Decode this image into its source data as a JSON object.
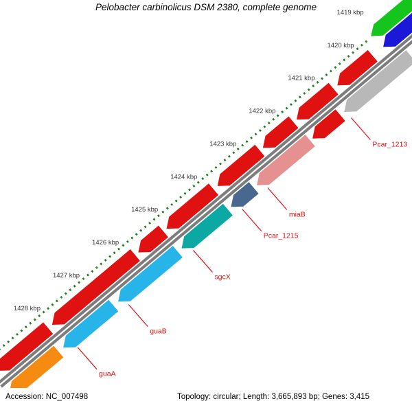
{
  "title": "Pelobacter carbinolicus DSM 2380, complete genome",
  "footer": {
    "accession": "Accession: NC_007498",
    "topology": "Topology: circular; Length: 3,665,893 bp; Genes: 3,415"
  },
  "genome_map": {
    "unit_label": "kbp",
    "ticks_kbp": [
      1419,
      1420,
      1421,
      1422,
      1423,
      1424,
      1425,
      1426,
      1427,
      1428
    ],
    "colors": {
      "red": "#e01111",
      "gray": "#b8b8b8",
      "pink": "#e59091",
      "steel": "#49688f",
      "teal": "#0ca9a4",
      "cyan": "#27b4e8",
      "orange": "#f68b11",
      "green": "#15c41c",
      "blue": "#1b18d8",
      "backbone": "#7d7d7d",
      "tick_line": "#1e7d1e",
      "tick_label": "#333333",
      "callout": "#dd1111"
    },
    "features": [
      {
        "name": "",
        "color": "green",
        "lane": "outer",
        "start_kbp": 1418.2,
        "end_kbp": 1419.5
      },
      {
        "name": "",
        "color": "blue",
        "lane": "forward",
        "start_kbp": 1418.3,
        "end_kbp": 1419.45
      },
      {
        "name": "",
        "color": "red",
        "lane": "forward",
        "start_kbp": 1419.72,
        "end_kbp": 1420.62
      },
      {
        "name": "",
        "color": "red",
        "lane": "forward",
        "start_kbp": 1420.72,
        "end_kbp": 1421.66
      },
      {
        "name": "",
        "color": "red",
        "lane": "forward",
        "start_kbp": 1421.74,
        "end_kbp": 1422.52
      },
      {
        "name": "",
        "color": "red",
        "lane": "forward",
        "start_kbp": 1422.6,
        "end_kbp": 1423.68
      },
      {
        "name": "",
        "color": "red",
        "lane": "forward",
        "start_kbp": 1423.78,
        "end_kbp": 1424.98
      },
      {
        "name": "",
        "color": "red",
        "lane": "forward",
        "start_kbp": 1425.06,
        "end_kbp": 1425.7
      },
      {
        "name": "",
        "color": "red",
        "lane": "forward",
        "start_kbp": 1425.78,
        "end_kbp": 1427.9
      },
      {
        "name": "",
        "color": "red",
        "lane": "forward",
        "start_kbp": 1428.0,
        "end_kbp": 1429.3
      },
      {
        "name": "Pcar_1213",
        "color": "gray",
        "lane": "reverse",
        "start_kbp": 1419.15,
        "end_kbp": 1420.85
      },
      {
        "name": "",
        "color": "red",
        "lane": "reverse",
        "start_kbp": 1420.95,
        "end_kbp": 1421.66
      },
      {
        "name": "miaB",
        "color": "pink",
        "lane": "reverse",
        "start_kbp": 1421.72,
        "end_kbp": 1423.08
      },
      {
        "name": "Pcar_1215",
        "color": "steel",
        "lane": "reverse",
        "start_kbp": 1423.16,
        "end_kbp": 1423.74
      },
      {
        "name": "sgcX",
        "color": "teal",
        "lane": "reverse",
        "start_kbp": 1423.82,
        "end_kbp": 1425.0
      },
      {
        "name": "guaB",
        "color": "cyan",
        "lane": "reverse",
        "start_kbp": 1425.1,
        "end_kbp": 1426.62
      },
      {
        "name": "guaA",
        "color": "cyan",
        "lane": "reverse",
        "start_kbp": 1426.74,
        "end_kbp": 1428.02
      },
      {
        "name": "",
        "color": "orange",
        "lane": "reverse",
        "start_kbp": 1428.14,
        "end_kbp": 1429.4
      }
    ],
    "callouts": [
      {
        "text": "Pcar_1213",
        "anchor_kbp": 1420.82
      },
      {
        "text": "miaB",
        "anchor_kbp": 1422.95
      },
      {
        "text": "Pcar_1215",
        "anchor_kbp": 1423.6
      },
      {
        "text": "sgcX",
        "anchor_kbp": 1424.85
      },
      {
        "text": "guaB",
        "anchor_kbp": 1426.5
      },
      {
        "text": "guaA",
        "anchor_kbp": 1427.8
      }
    ]
  }
}
